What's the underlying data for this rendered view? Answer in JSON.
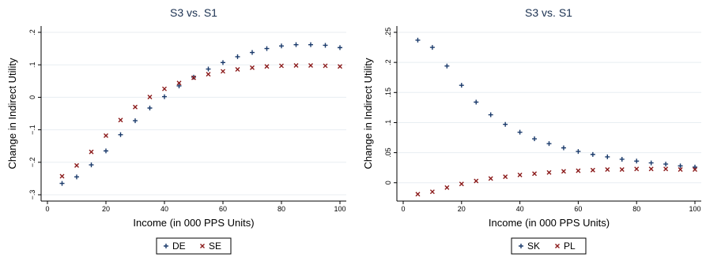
{
  "chart_data": [
    {
      "type": "scatter",
      "title": "S3 vs. S1",
      "xlabel": "Income (in 000 PPS Units)",
      "ylabel": "Change in Indirect Utility",
      "xlim": [
        0,
        100
      ],
      "ylim": [
        -0.3,
        0.2
      ],
      "xticks": [
        0,
        20,
        40,
        60,
        80,
        100
      ],
      "yticks": [
        -0.3,
        -0.2,
        -0.1,
        0,
        0.1,
        0.2
      ],
      "ytick_labels": [
        "−.3",
        "−.2",
        "−.1",
        "0",
        ".1",
        ".2"
      ],
      "grid": true,
      "legend_position": "bottom",
      "series": [
        {
          "name": "DE",
          "marker": "plus",
          "color": "#1a3a6b",
          "x": [
            5,
            10,
            15,
            20,
            25,
            30,
            35,
            40,
            45,
            50,
            55,
            60,
            65,
            70,
            75,
            80,
            85,
            90,
            95,
            100
          ],
          "y": [
            -0.265,
            -0.245,
            -0.208,
            -0.165,
            -0.115,
            -0.072,
            -0.033,
            0.002,
            0.035,
            0.062,
            0.087,
            0.107,
            0.125,
            0.138,
            0.15,
            0.158,
            0.162,
            0.162,
            0.16,
            0.153
          ]
        },
        {
          "name": "SE",
          "marker": "x",
          "color": "#8b1a1a",
          "x": [
            5,
            10,
            15,
            20,
            25,
            30,
            35,
            40,
            45,
            50,
            55,
            60,
            65,
            70,
            75,
            80,
            85,
            90,
            95,
            100
          ],
          "y": [
            -0.243,
            -0.21,
            -0.168,
            -0.118,
            -0.07,
            -0.03,
            0.001,
            0.026,
            0.044,
            0.06,
            0.071,
            0.08,
            0.086,
            0.091,
            0.095,
            0.097,
            0.098,
            0.098,
            0.097,
            0.095
          ]
        }
      ]
    },
    {
      "type": "scatter",
      "title": "S3 vs. S1",
      "xlabel": "Income (in 000 PPS Units)",
      "ylabel": "Change in Indirect Utility",
      "xlim": [
        0,
        100
      ],
      "ylim": [
        -0.02,
        0.25
      ],
      "xticks": [
        0,
        20,
        40,
        60,
        80,
        100
      ],
      "yticks": [
        0,
        0.05,
        0.1,
        0.15,
        0.2,
        0.25
      ],
      "ytick_labels": [
        "0",
        ".05",
        ".1",
        ".15",
        ".2",
        ".25"
      ],
      "grid": true,
      "legend_position": "bottom",
      "series": [
        {
          "name": "SK",
          "marker": "plus",
          "color": "#1a3a6b",
          "x": [
            5,
            10,
            15,
            20,
            25,
            30,
            35,
            40,
            45,
            50,
            55,
            60,
            65,
            70,
            75,
            80,
            85,
            90,
            95,
            100
          ],
          "y": [
            0.237,
            0.225,
            0.194,
            0.162,
            0.134,
            0.113,
            0.097,
            0.084,
            0.073,
            0.065,
            0.058,
            0.052,
            0.047,
            0.043,
            0.039,
            0.036,
            0.033,
            0.031,
            0.028,
            0.026
          ]
        },
        {
          "name": "PL",
          "marker": "x",
          "color": "#8b1a1a",
          "x": [
            5,
            10,
            15,
            20,
            25,
            30,
            35,
            40,
            45,
            50,
            55,
            60,
            65,
            70,
            75,
            80,
            85,
            90,
            95,
            100
          ],
          "y": [
            -0.019,
            -0.015,
            -0.008,
            -0.002,
            0.003,
            0.007,
            0.01,
            0.013,
            0.015,
            0.017,
            0.019,
            0.02,
            0.021,
            0.022,
            0.022,
            0.023,
            0.023,
            0.023,
            0.022,
            0.022
          ]
        }
      ]
    }
  ]
}
